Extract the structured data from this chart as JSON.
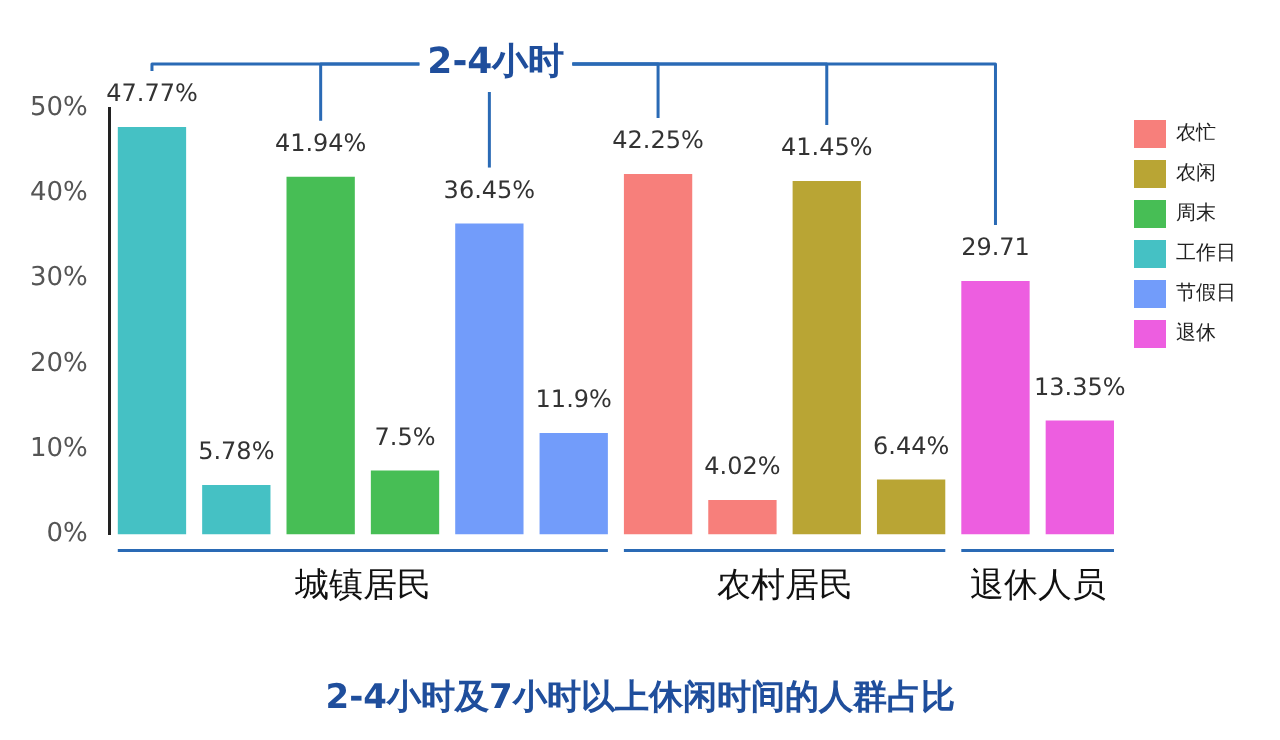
{
  "chart_data": {
    "type": "bar",
    "title": "2-4小时及7小时以上休闲时间的人群占比",
    "categories": [
      null,
      null,
      null,
      null,
      null,
      null,
      null,
      null,
      null,
      null,
      null,
      null
    ],
    "series": [
      {
        "name": "农忙",
        "color": "#f77f7b",
        "values": [
          null,
          null,
          null,
          null,
          null,
          null,
          42.25,
          4.02,
          null,
          null,
          null,
          null
        ],
        "value_labels": [
          null,
          null,
          null,
          null,
          null,
          null,
          "42.25%",
          "4.02%",
          null,
          null,
          null,
          null
        ]
      },
      {
        "name": "农闲",
        "color": "#b9a534",
        "values": [
          null,
          null,
          null,
          null,
          null,
          null,
          null,
          null,
          41.45,
          6.44,
          null,
          null
        ],
        "value_labels": [
          null,
          null,
          null,
          null,
          null,
          null,
          null,
          null,
          "41.45%",
          "6.44%",
          null,
          null
        ]
      },
      {
        "name": "周末",
        "color": "#47be55",
        "values": [
          null,
          null,
          41.94,
          7.5,
          null,
          null,
          null,
          null,
          null,
          null,
          null,
          null
        ],
        "value_labels": [
          null,
          null,
          "41.94%",
          "7.5%",
          null,
          null,
          null,
          null,
          null,
          null,
          null,
          null
        ]
      },
      {
        "name": "工作日",
        "color": "#45c1c4",
        "values": [
          47.77,
          5.78,
          null,
          null,
          null,
          null,
          null,
          null,
          null,
          null,
          null,
          null
        ],
        "value_labels": [
          "47.77%",
          "5.78%",
          null,
          null,
          null,
          null,
          null,
          null,
          null,
          null,
          null,
          null
        ]
      },
      {
        "name": "节假日",
        "color": "#729cfa",
        "values": [
          null,
          null,
          null,
          null,
          36.45,
          11.9,
          null,
          null,
          null,
          null,
          null,
          null
        ],
        "value_labels": [
          null,
          null,
          null,
          null,
          "36.45%",
          "11.9%",
          null,
          null,
          null,
          null,
          null,
          null
        ]
      },
      {
        "name": "退休",
        "color": "#ed5ee0",
        "values": [
          null,
          null,
          null,
          null,
          null,
          null,
          null,
          null,
          null,
          null,
          29.71,
          13.35
        ],
        "value_labels": [
          null,
          null,
          null,
          null,
          null,
          null,
          null,
          null,
          null,
          null,
          "29.71",
          "13.35%"
        ]
      }
    ],
    "ylim": [
      0,
      50
    ],
    "yticks": [
      {
        "value": 0,
        "label": "0%"
      },
      {
        "value": 10,
        "label": "10%"
      },
      {
        "value": 20,
        "label": "20%"
      },
      {
        "value": 30,
        "label": "30%"
      },
      {
        "value": 40,
        "label": "40%"
      },
      {
        "value": 50,
        "label": "50%"
      }
    ],
    "annotations": [
      "2-4小时",
      "城镇居民",
      "农村居民",
      "退休人员"
    ],
    "grid": false,
    "stacked": true,
    "legend": "top right"
  }
}
